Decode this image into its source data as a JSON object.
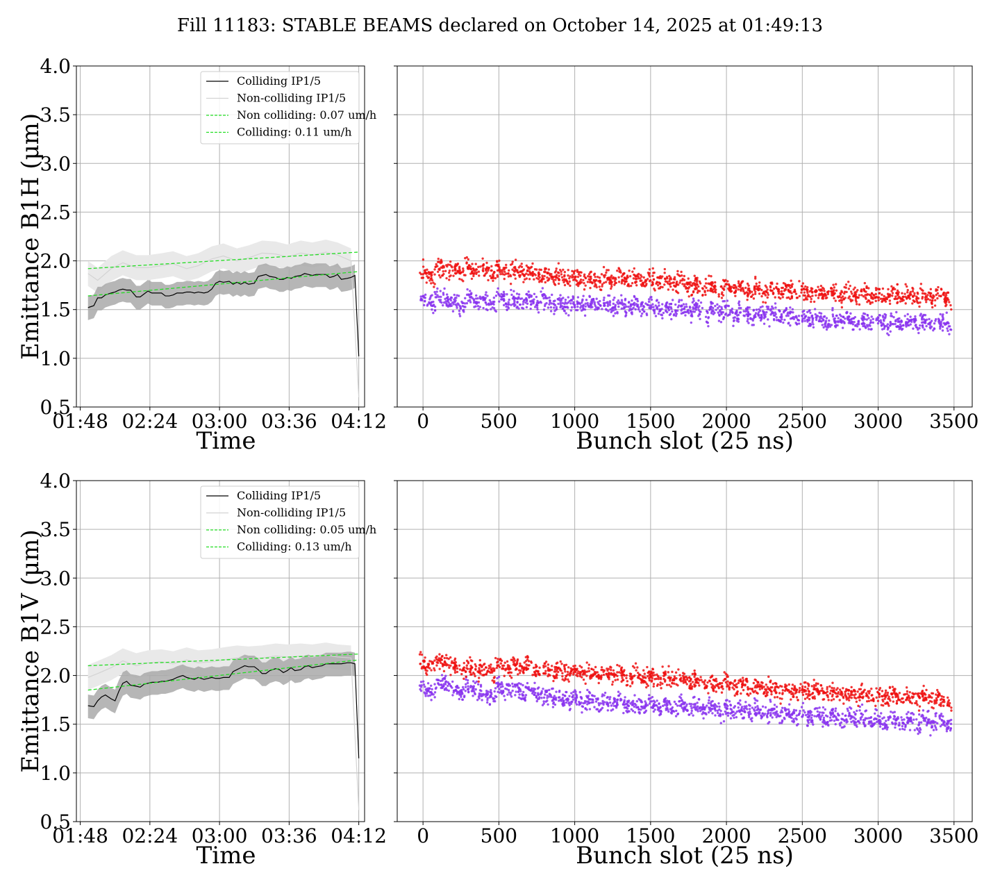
{
  "suptitle": "Fill 11183: STABLE BEAMS declared on October 14, 2025 at 01:49:13",
  "chart_data": [
    {
      "type": "line",
      "panel": "B1H-time",
      "xlabel": "Time",
      "ylabel": "Emittance B1H (μm)",
      "ylim": [
        0.5,
        4.0
      ],
      "yticks": [
        "0.5",
        "1.0",
        "1.5",
        "2.0",
        "2.5",
        "3.0",
        "3.5",
        "4.0"
      ],
      "xticks": [
        "01:48",
        "02:24",
        "03:00",
        "03:36",
        "04:12"
      ],
      "legend_loc": "upper right",
      "legend": [
        "Colliding IP1/5",
        "Non-colliding IP1/5",
        "Non colliding: 0.07 um/h",
        "Colliding: 0.11 um/h"
      ],
      "series": [
        {
          "name": "Colliding IP1/5",
          "color": "#000000",
          "style": "solid",
          "x": [
            "01:52",
            "01:55",
            "01:57",
            "01:59",
            "02:01",
            "02:04",
            "02:06",
            "02:08",
            "02:10",
            "02:12",
            "02:14",
            "02:17",
            "02:19",
            "02:21",
            "02:23",
            "02:25",
            "02:28",
            "02:30",
            "02:32",
            "02:34",
            "02:36",
            "02:38",
            "02:41",
            "02:43",
            "02:45",
            "02:47",
            "02:49",
            "02:52",
            "02:54",
            "02:56",
            "02:58",
            "03:00",
            "03:02",
            "03:05",
            "03:07",
            "03:09",
            "03:11",
            "03:13",
            "03:15",
            "03:18",
            "03:20",
            "03:22",
            "03:24",
            "03:26",
            "03:29",
            "03:31",
            "03:33",
            "03:35",
            "03:37",
            "03:39",
            "03:42",
            "03:44",
            "03:46",
            "03:48",
            "03:50",
            "03:53",
            "03:55",
            "03:57",
            "03:59",
            "04:01",
            "04:03",
            "04:06",
            "04:08",
            "04:10",
            "04:12"
          ],
          "y": [
            1.52,
            1.54,
            1.62,
            1.62,
            1.65,
            1.67,
            1.68,
            1.7,
            1.71,
            1.7,
            1.7,
            1.63,
            1.63,
            1.66,
            1.69,
            1.67,
            1.67,
            1.67,
            1.64,
            1.64,
            1.65,
            1.67,
            1.67,
            1.68,
            1.68,
            1.67,
            1.68,
            1.67,
            1.68,
            1.71,
            1.77,
            1.79,
            1.78,
            1.79,
            1.76,
            1.78,
            1.76,
            1.78,
            1.76,
            1.77,
            1.84,
            1.85,
            1.86,
            1.84,
            1.83,
            1.81,
            1.81,
            1.83,
            1.82,
            1.84,
            1.85,
            1.87,
            1.86,
            1.85,
            1.86,
            1.86,
            1.86,
            1.83,
            1.84,
            1.86,
            1.81,
            1.82,
            1.83,
            1.85,
            1.02
          ]
        },
        {
          "name": "Non-colliding IP1/5",
          "color": "#d3d3d3",
          "style": "solid",
          "x": [
            "01:52",
            "01:57",
            "02:04",
            "02:10",
            "02:17",
            "02:23",
            "02:30",
            "02:36",
            "02:43",
            "02:49",
            "02:56",
            "03:02",
            "03:09",
            "03:15",
            "03:22",
            "03:29",
            "03:35",
            "03:42",
            "03:48",
            "03:55",
            "04:01",
            "04:08",
            "04:12"
          ],
          "y": [
            1.87,
            1.8,
            1.92,
            1.98,
            1.93,
            1.93,
            1.95,
            1.97,
            1.92,
            1.95,
            2.02,
            2.05,
            2.0,
            2.03,
            2.08,
            2.07,
            2.04,
            2.08,
            2.06,
            2.09,
            2.06,
            2.0,
            0.6
          ]
        },
        {
          "name": "Non colliding: 0.07 um/h",
          "color": "#22dd22",
          "style": "dashed",
          "x": [
            "01:52",
            "04:12"
          ],
          "y": [
            1.92,
            2.09
          ]
        },
        {
          "name": "Colliding: 0.11 um/h",
          "color": "#22dd22",
          "style": "dashed",
          "x": [
            "01:52",
            "04:12"
          ],
          "y": [
            1.64,
            1.89
          ]
        }
      ]
    },
    {
      "type": "scatter",
      "panel": "B1H-bunch",
      "xlabel": "Bunch slot (25 ns)",
      "xlim": [
        -170,
        3620
      ],
      "ylim": [
        0.5,
        4.0
      ],
      "xticks": [
        "0",
        "500",
        "1000",
        "1500",
        "2000",
        "2500",
        "3000",
        "3500"
      ],
      "series": [
        {
          "name": "red",
          "color": "#ee1111",
          "x": [
            30,
            130,
            230,
            330,
            430,
            530,
            630,
            730,
            830,
            930,
            1030,
            1130,
            1230,
            1330,
            1430,
            1530,
            1630,
            1730,
            1830,
            1930,
            2030,
            2130,
            2230,
            2330,
            2430,
            2530,
            2630,
            2730,
            2830,
            2930,
            3030,
            3130,
            3230,
            3330,
            3430
          ],
          "y": [
            1.86,
            1.92,
            1.9,
            1.92,
            1.9,
            1.9,
            1.89,
            1.87,
            1.85,
            1.83,
            1.83,
            1.8,
            1.81,
            1.8,
            1.8,
            1.8,
            1.78,
            1.76,
            1.74,
            1.72,
            1.72,
            1.7,
            1.7,
            1.69,
            1.69,
            1.68,
            1.67,
            1.66,
            1.66,
            1.65,
            1.65,
            1.64,
            1.64,
            1.64,
            1.64
          ]
        },
        {
          "name": "purple",
          "color": "#8833ee",
          "x": [
            30,
            130,
            230,
            330,
            430,
            530,
            630,
            730,
            830,
            930,
            1030,
            1130,
            1230,
            1330,
            1430,
            1530,
            1630,
            1730,
            1830,
            1930,
            2030,
            2130,
            2230,
            2330,
            2430,
            2530,
            2630,
            2730,
            2830,
            2930,
            3030,
            3130,
            3230,
            3330,
            3430
          ],
          "y": [
            1.58,
            1.62,
            1.56,
            1.6,
            1.58,
            1.6,
            1.59,
            1.58,
            1.57,
            1.55,
            1.56,
            1.55,
            1.55,
            1.55,
            1.54,
            1.52,
            1.51,
            1.5,
            1.49,
            1.49,
            1.47,
            1.46,
            1.45,
            1.44,
            1.43,
            1.42,
            1.41,
            1.4,
            1.39,
            1.38,
            1.37,
            1.37,
            1.36,
            1.36,
            1.36
          ]
        }
      ]
    },
    {
      "type": "line",
      "panel": "B1V-time",
      "xlabel": "Time",
      "ylabel": "Emittance B1V (μm)",
      "ylim": [
        0.5,
        4.0
      ],
      "yticks": [
        "0.5",
        "1.0",
        "1.5",
        "2.0",
        "2.5",
        "3.0",
        "3.5",
        "4.0"
      ],
      "xticks": [
        "01:48",
        "02:24",
        "03:00",
        "03:36",
        "04:12"
      ],
      "legend_loc": "upper right",
      "legend": [
        "Colliding IP1/5",
        "Non-colliding IP1/5",
        "Non colliding: 0.05 um/h",
        "Colliding: 0.13 um/h"
      ],
      "series": [
        {
          "name": "Colliding IP1/5",
          "color": "#000000",
          "style": "solid",
          "x": [
            "01:52",
            "01:55",
            "01:57",
            "01:59",
            "02:01",
            "02:04",
            "02:06",
            "02:08",
            "02:10",
            "02:12",
            "02:14",
            "02:17",
            "02:19",
            "02:21",
            "02:23",
            "02:25",
            "02:28",
            "02:30",
            "02:32",
            "02:34",
            "02:36",
            "02:38",
            "02:41",
            "02:43",
            "02:45",
            "02:47",
            "02:49",
            "02:52",
            "02:54",
            "02:56",
            "02:58",
            "03:00",
            "03:02",
            "03:05",
            "03:07",
            "03:09",
            "03:11",
            "03:13",
            "03:15",
            "03:18",
            "03:20",
            "03:22",
            "03:24",
            "03:26",
            "03:29",
            "03:31",
            "03:33",
            "03:35",
            "03:37",
            "03:39",
            "03:42",
            "03:44",
            "03:46",
            "03:48",
            "03:50",
            "03:53",
            "03:55",
            "03:57",
            "03:59",
            "04:01",
            "04:03",
            "04:06",
            "04:08",
            "04:10",
            "04:12"
          ],
          "y": [
            1.69,
            1.68,
            1.74,
            1.78,
            1.8,
            1.76,
            1.74,
            1.84,
            1.92,
            1.94,
            1.9,
            1.89,
            1.88,
            1.91,
            1.92,
            1.93,
            1.93,
            1.94,
            1.94,
            1.95,
            1.96,
            1.98,
            2.0,
            1.98,
            1.97,
            1.96,
            1.98,
            1.96,
            1.97,
            1.98,
            1.97,
            1.97,
            1.98,
            1.98,
            2.04,
            2.06,
            2.08,
            2.1,
            2.09,
            2.09,
            2.06,
            2.02,
            2.02,
            2.05,
            2.07,
            2.06,
            2.03,
            2.05,
            2.08,
            2.05,
            2.06,
            2.09,
            2.1,
            2.08,
            2.09,
            2.1,
            2.12,
            2.12,
            2.12,
            2.12,
            2.12,
            2.13,
            2.13,
            2.12,
            1.15
          ]
        },
        {
          "name": "Non-colliding IP1/5",
          "color": "#d3d3d3",
          "style": "solid",
          "x": [
            "01:52",
            "01:57",
            "02:04",
            "02:10",
            "02:17",
            "02:23",
            "02:30",
            "02:36",
            "02:43",
            "02:49",
            "02:56",
            "03:02",
            "03:09",
            "03:15",
            "03:22",
            "03:29",
            "03:35",
            "03:42",
            "03:48",
            "03:55",
            "04:01",
            "04:08",
            "04:12"
          ],
          "y": [
            1.98,
            2.02,
            2.08,
            2.15,
            2.1,
            2.13,
            2.14,
            2.12,
            2.16,
            2.13,
            2.14,
            2.16,
            2.18,
            2.17,
            2.18,
            2.2,
            2.19,
            2.2,
            2.19,
            2.21,
            2.19,
            2.18,
            0.62
          ]
        },
        {
          "name": "Non colliding: 0.05 um/h",
          "color": "#22dd22",
          "style": "dashed",
          "x": [
            "01:52",
            "04:12"
          ],
          "y": [
            2.1,
            2.22
          ]
        },
        {
          "name": "Colliding: 0.13 um/h",
          "color": "#22dd22",
          "style": "dashed",
          "x": [
            "01:52",
            "04:12"
          ],
          "y": [
            1.85,
            2.16
          ]
        }
      ]
    },
    {
      "type": "scatter",
      "panel": "B1V-bunch",
      "xlabel": "Bunch slot (25 ns)",
      "xlim": [
        -170,
        3620
      ],
      "ylim": [
        0.5,
        4.0
      ],
      "xticks": [
        "0",
        "500",
        "1000",
        "1500",
        "2000",
        "2500",
        "3000",
        "3500"
      ],
      "series": [
        {
          "name": "red",
          "color": "#ee1111",
          "x": [
            30,
            130,
            230,
            330,
            430,
            530,
            630,
            730,
            830,
            930,
            1030,
            1130,
            1230,
            1330,
            1430,
            1530,
            1630,
            1730,
            1830,
            1930,
            2030,
            2130,
            2230,
            2330,
            2430,
            2530,
            2630,
            2730,
            2830,
            2930,
            3030,
            3130,
            3230,
            3330,
            3430
          ],
          "y": [
            2.1,
            2.13,
            2.08,
            2.08,
            2.05,
            2.1,
            2.09,
            2.07,
            2.05,
            2.04,
            2.03,
            2.02,
            2.03,
            2.0,
            1.99,
            1.98,
            1.97,
            1.95,
            1.93,
            1.92,
            1.91,
            1.89,
            1.87,
            1.85,
            1.85,
            1.84,
            1.83,
            1.81,
            1.8,
            1.79,
            1.78,
            1.78,
            1.77,
            1.76,
            1.76
          ]
        },
        {
          "name": "purple",
          "color": "#8833ee",
          "x": [
            30,
            130,
            230,
            330,
            430,
            530,
            630,
            730,
            830,
            930,
            1030,
            1130,
            1230,
            1330,
            1430,
            1530,
            1630,
            1730,
            1830,
            1930,
            2030,
            2130,
            2230,
            2330,
            2430,
            2530,
            2630,
            2730,
            2830,
            2930,
            3030,
            3130,
            3230,
            3330,
            3430
          ],
          "y": [
            1.85,
            1.92,
            1.84,
            1.86,
            1.8,
            1.86,
            1.84,
            1.82,
            1.78,
            1.76,
            1.74,
            1.74,
            1.73,
            1.71,
            1.7,
            1.69,
            1.68,
            1.67,
            1.66,
            1.65,
            1.64,
            1.63,
            1.62,
            1.61,
            1.6,
            1.59,
            1.58,
            1.57,
            1.56,
            1.55,
            1.54,
            1.53,
            1.53,
            1.52,
            1.52
          ]
        }
      ]
    }
  ]
}
